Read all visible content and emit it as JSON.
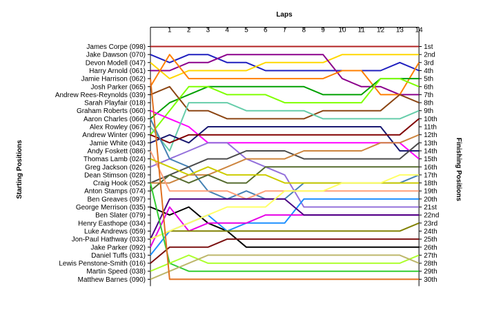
{
  "chart_data": {
    "type": "line",
    "title": "",
    "top_axis_label": "Laps",
    "left_axis_label": "Starting Positions",
    "right_axis_label": "Finishing Positions",
    "laps": [
      "1",
      "2",
      "3",
      "4",
      "5",
      "6",
      "7",
      "8",
      "9",
      "10",
      "11",
      "12",
      "13",
      "14"
    ],
    "finishing_labels": [
      "1st",
      "2nd",
      "3rd",
      "4th",
      "5th",
      "6th",
      "7th",
      "8th",
      "9th",
      "10th",
      "11th",
      "12th",
      "13th",
      "14th",
      "15th",
      "16th",
      "17th",
      "18th",
      "19th",
      "20th",
      "21st",
      "22nd",
      "23rd",
      "24th",
      "25th",
      "26th",
      "27th",
      "28th",
      "29th",
      "30th"
    ],
    "grid": false,
    "series": [
      {
        "name": "James Corpe (098)",
        "color": "#b22222",
        "positions": [
          1,
          1,
          1,
          1,
          1,
          1,
          1,
          1,
          1,
          1,
          1,
          1,
          1,
          1,
          1
        ]
      },
      {
        "name": "Jake Dawson (070)",
        "color": "#1f1fbf",
        "positions": [
          2,
          3,
          2,
          2,
          3,
          3,
          4,
          4,
          4,
          4,
          4,
          4,
          4,
          3,
          4
        ]
      },
      {
        "name": "Devon Modell (047)",
        "color": "#ffd700",
        "positions": [
          3,
          5,
          4,
          4,
          4,
          4,
          3,
          3,
          3,
          3,
          2,
          2,
          2,
          2,
          2
        ]
      },
      {
        "name": "Harry Arnold (061)",
        "color": "#8b008b",
        "positions": [
          4,
          4,
          3,
          3,
          2,
          2,
          2,
          2,
          2,
          2,
          5,
          6,
          6,
          7,
          7
        ]
      },
      {
        "name": "Jamie Harrison (062)",
        "color": "#ff7f00",
        "positions": [
          6,
          2,
          5,
          5,
          5,
          5,
          5,
          5,
          5,
          5,
          4,
          4,
          7,
          7,
          3
        ]
      },
      {
        "name": "Josh Parker (065)",
        "color": "#00a000",
        "positions": [
          10,
          8,
          7,
          6,
          6,
          6,
          6,
          6,
          6,
          7,
          7,
          7,
          5,
          5,
          5
        ]
      },
      {
        "name": "Andrew Rees-Reynolds (039)",
        "color": "#7fff00",
        "positions": [
          12,
          9,
          6,
          6,
          7,
          7,
          7,
          8,
          8,
          8,
          8,
          8,
          5,
          5,
          6
        ]
      },
      {
        "name": "Sarah Playfair (018)",
        "color": "#ff00ff",
        "positions": [
          9,
          10,
          11,
          13,
          13,
          13,
          13,
          13,
          13,
          13,
          13,
          13,
          13,
          13,
          15
        ]
      },
      {
        "name": "Graham Roberts (060)",
        "color": "#8b4513",
        "positions": [
          7,
          6,
          9,
          9,
          10,
          10,
          10,
          10,
          10,
          9,
          9,
          9,
          9,
          7,
          8
        ]
      },
      {
        "name": "Aaron Charles (066)",
        "color": "#66cdaa",
        "positions": [
          11,
          14,
          8,
          8,
          8,
          9,
          9,
          9,
          9,
          10,
          10,
          10,
          10,
          10,
          9
        ]
      },
      {
        "name": "Alex Rowley (067)",
        "color": "#191970",
        "positions": [
          13,
          12,
          13,
          11,
          11,
          11,
          11,
          11,
          11,
          11,
          11,
          11,
          11,
          14,
          14
        ]
      },
      {
        "name": "Andrew Winter (096)",
        "color": "#800000",
        "positions": [
          12,
          13,
          12,
          12,
          12,
          12,
          12,
          12,
          12,
          12,
          12,
          12,
          12,
          12,
          10
        ]
      },
      {
        "name": "Jamie White (043)",
        "color": "#9370db",
        "positions": [
          16,
          15,
          14,
          13,
          13,
          15,
          16,
          17,
          21,
          21,
          21,
          21,
          21,
          21,
          21
        ]
      },
      {
        "name": "Andy Foskett (086)",
        "color": "#4682b4",
        "positions": [
          10,
          15,
          16,
          19,
          20,
          19,
          20,
          20,
          18,
          18,
          18,
          18,
          18,
          18,
          17
        ]
      },
      {
        "name": "Thomas Lamb (024)",
        "color": "#4b4b4b",
        "positions": [
          18,
          17,
          16,
          15,
          15,
          14,
          14,
          14,
          15,
          15,
          15,
          15,
          15,
          15,
          13
        ]
      },
      {
        "name": "Greg Jackson (026)",
        "color": "#cd853f",
        "positions": [
          18,
          18,
          17,
          17,
          16,
          15,
          15,
          15,
          14,
          14,
          14,
          14,
          13,
          13,
          12
        ]
      },
      {
        "name": "Dean Stimson (028)",
        "color": "#556b2f",
        "positions": [
          19,
          17,
          18,
          17,
          18,
          18,
          16,
          16,
          16,
          16,
          16,
          16,
          16,
          16,
          16
        ]
      },
      {
        "name": "Craig Hook (052)",
        "color": "#ffa07a",
        "positions": [
          14,
          19,
          19,
          19,
          19,
          20,
          19,
          19,
          19,
          19,
          19,
          19,
          19,
          19,
          19
        ]
      },
      {
        "name": "Anton Stamps (074)",
        "color": "#cccc00",
        "positions": [
          15,
          16,
          17,
          16,
          17,
          17,
          17,
          18,
          18,
          18,
          18,
          18,
          18,
          18,
          18
        ]
      },
      {
        "name": "Ben Greaves (097)",
        "color": "#000000",
        "positions": [
          21,
          22,
          21,
          23,
          24,
          26,
          26,
          26,
          26,
          26,
          26,
          26,
          26,
          26,
          26
        ]
      },
      {
        "name": "George Merrison (035)",
        "color": "#1e90ff",
        "positions": [
          27,
          24,
          23,
          22,
          24,
          23,
          23,
          23,
          20,
          20,
          20,
          20,
          20,
          20,
          20
        ]
      },
      {
        "name": "Ben Slater (079)",
        "color": "#e600e6",
        "positions": [
          26,
          21,
          24,
          23,
          23,
          23,
          22,
          22,
          22,
          22,
          22,
          22,
          22,
          22,
          22
        ]
      },
      {
        "name": "Henry Easthope (034)",
        "color": "#4b0082",
        "positions": [
          25,
          20,
          20,
          20,
          20,
          20,
          20,
          20,
          22,
          22,
          22,
          22,
          22,
          22,
          22
        ]
      },
      {
        "name": "Luke Andrews (059)",
        "color": "#808000",
        "positions": [
          25,
          24,
          24,
          24,
          24,
          24,
          24,
          24,
          24,
          24,
          24,
          24,
          24,
          24,
          23
        ]
      },
      {
        "name": "Jon-Paul Hathway (033)",
        "color": "#ffff66",
        "positions": [
          25,
          24,
          23,
          22,
          21,
          21,
          21,
          19,
          19,
          19,
          18,
          18,
          18,
          17,
          17
        ]
      },
      {
        "name": "Jake Parker (092)",
        "color": "#7b1010",
        "positions": [
          28,
          26,
          26,
          26,
          25,
          25,
          25,
          25,
          25,
          25,
          25,
          25,
          25,
          25,
          25
        ]
      },
      {
        "name": "Daniel Tuffs (031)",
        "color": "#32cd32",
        "positions": [
          18,
          28,
          29,
          29,
          29,
          29,
          29,
          29,
          29,
          29,
          29,
          29,
          29,
          29,
          29
        ]
      },
      {
        "name": "Lewis Penstone-Smith (016)",
        "color": "#adff2f",
        "positions": [
          29,
          28,
          27,
          28,
          28,
          28,
          28,
          28,
          28,
          28,
          28,
          28,
          28,
          28,
          27
        ]
      },
      {
        "name": "Martin Speed (038)",
        "color": "#bdb76b",
        "positions": [
          30,
          29,
          28,
          27,
          27,
          27,
          27,
          27,
          27,
          27,
          27,
          27,
          27,
          27,
          28
        ]
      },
      {
        "name": "Matthew Barnes (090)",
        "color": "#e07020",
        "positions": [
          5,
          30,
          30,
          30,
          30,
          30,
          30,
          30,
          30,
          30,
          30,
          30,
          30,
          30,
          30
        ]
      }
    ]
  }
}
